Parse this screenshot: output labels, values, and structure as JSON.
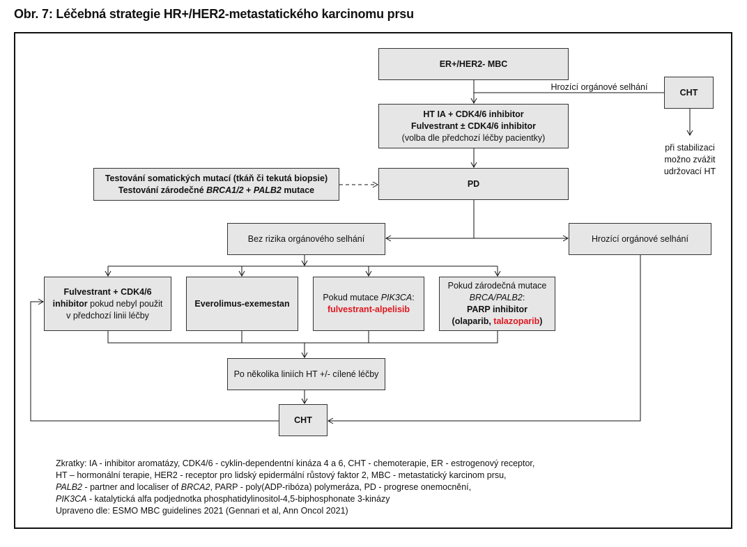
{
  "title": "Obr. 7: Léčebná strategie HR+/HER2-metastatického karcinomu prsu",
  "nodes": {
    "start": "ER+/HER2- MBC",
    "cht_top": "CHT",
    "organ_failure_label": "Hrozící orgánové selhání",
    "cht_note": [
      "při stabilizaci",
      "možno zvážit",
      "udržovací HT"
    ],
    "first_line": [
      "HT IA + CDK4/6 inhibitor",
      "Fulvestrant ± CDK4/6 inhibitor",
      "(volba dle předchozí léčby pacientky)"
    ],
    "testing": [
      "Testování somatických mutací (tkáň či tekutá biopsie)",
      "Testování zárodečné ",
      "BRCA1/2",
      " + ",
      "PALB2",
      " mutace"
    ],
    "pd": "PD",
    "no_risk": "Bez rizika orgánového selhání",
    "organ_failure": "Hrozící orgánové selhání",
    "opt1": [
      "Fulvestrant + CDK4/6",
      "inhibitor",
      " pokud nebyl použit",
      "v předchozí linii léčby"
    ],
    "opt2": "Everolimus-exemestan",
    "opt3": [
      "Pokud mutace ",
      "PIK3CA",
      ":",
      "fulvestrant-alpelisib"
    ],
    "opt4": [
      "Pokud zárodečná mutace",
      "BRCA/PALB2",
      ":",
      "PARP inhibitor",
      "(olaparib, ",
      "talazoparib",
      ")"
    ],
    "after": "Po několika liniích HT +/- cílené léčby",
    "cht_bottom": "CHT"
  },
  "footer": [
    "Zkratky: IA - inhibitor aromatázy, CDK4/6 - cyklin-dependentní kináza 4 a 6, CHT - chemoterapie, ER - estrogenový receptor,",
    "HT – hormonální terapie, HER2 - receptor pro lidský epidermální růstový faktor 2, MBC - metastatický karcinom prsu,",
    [
      "PALB2",
      " - partner and localiser of ",
      "BRCA2",
      ", PARP - poly(ADP-ribóza) polymeráza, PD - progrese onemocnění,"
    ],
    [
      "PIK3CA",
      " - katalytická alfa podjednotka phosphatidylinositol-4,5-biphosphonate 3-kinázy"
    ],
    "Upraveno dle: ESMO MBC guidelines 2021 (Gennari et al, Ann Oncol 2021)"
  ],
  "colors": {
    "box_fill": "#e6e6e6",
    "highlight": "#e0161e"
  }
}
